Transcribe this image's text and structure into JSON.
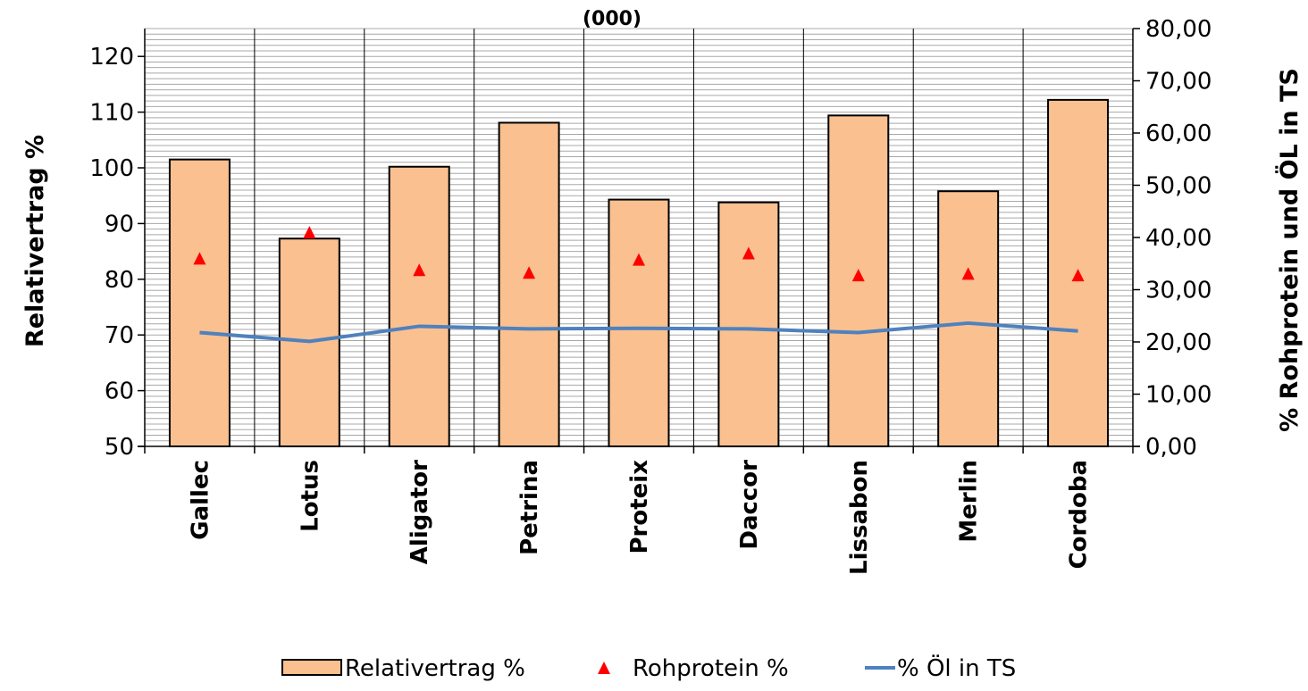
{
  "chart_data": {
    "type": "bar",
    "title": "(000)",
    "categories": [
      "Gallec",
      "Lotus",
      "Aligator",
      "Petrina",
      "Proteix",
      "Daccor",
      "Lissabon",
      "Merlin",
      "Cordoba"
    ],
    "series": [
      {
        "name": "Relativertrag %",
        "kind": "bar",
        "axis": "left",
        "color": "#FAC090",
        "values": [
          101.5,
          87.3,
          100.2,
          108.1,
          94.3,
          93.8,
          109.4,
          95.8,
          112.2
        ]
      },
      {
        "name": "Rohprotein %",
        "kind": "marker",
        "axis": "right",
        "color": "#FF0000",
        "values": [
          36.0,
          41.0,
          33.8,
          33.3,
          35.8,
          37.0,
          32.8,
          33.1,
          32.8
        ]
      },
      {
        "name": "% Öl in TS",
        "kind": "line",
        "axis": "right",
        "color": "#4F81BD",
        "values": [
          21.8,
          20.1,
          23.0,
          22.5,
          22.6,
          22.5,
          21.8,
          23.6,
          22.1
        ]
      }
    ],
    "ylabel": "Relativertrag %",
    "ylim": [
      50,
      125
    ],
    "yticks": [
      50,
      60,
      70,
      80,
      90,
      100,
      110,
      120
    ],
    "y2label": "% Rohprotein und ÖL in TS",
    "y2lim": [
      0,
      80
    ],
    "y2ticks": [
      "0,00",
      "10,00",
      "20,00",
      "30,00",
      "40,00",
      "50,00",
      "60,00",
      "70,00",
      "80,00"
    ],
    "grid": true,
    "legend": "bottom"
  }
}
